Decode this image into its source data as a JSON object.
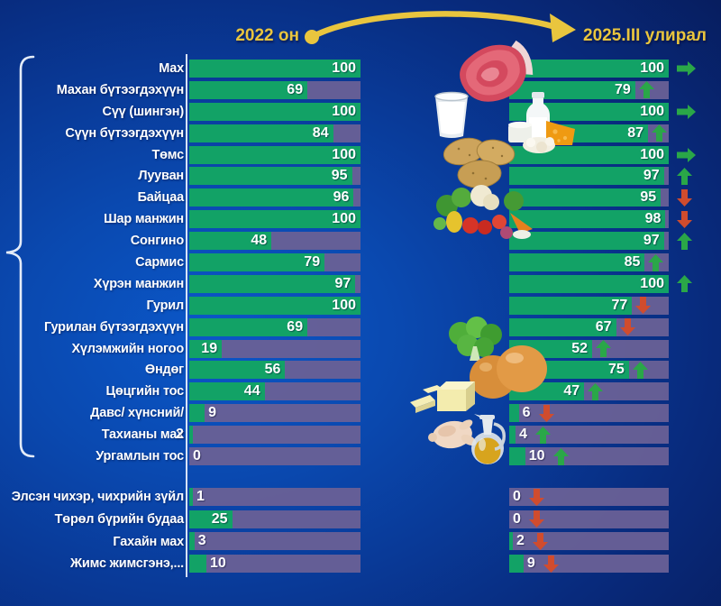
{
  "header": {
    "left_title": "2022 он",
    "right_title": "2025.III улирал"
  },
  "colors": {
    "bar_green": "#12a266",
    "track_purple": "#6a6096",
    "up_arrow_green": "#2aa748",
    "down_arrow_red": "#d04c2e",
    "right_arrow_green": "#2aa748",
    "header_gold": "#e9c53e",
    "background_blue": "#0a49b0",
    "value_text": "#ffffff"
  },
  "chart_data": {
    "type": "bar",
    "orientation": "horizontal",
    "xlim": [
      0,
      100
    ],
    "grid": false,
    "series": [
      "2022 он",
      "2025.III улирал"
    ],
    "legend_position": "top",
    "groups": [
      {
        "name": "main-food-group",
        "rows": [
          {
            "label": "Мах",
            "y2022": 100,
            "y2025": 100,
            "trend": "right"
          },
          {
            "label": "Махан бүтээгдэхүүн",
            "y2022": 69,
            "y2025": 79,
            "trend": "up"
          },
          {
            "label": "Сүү (шингэн)",
            "y2022": 100,
            "y2025": 100,
            "trend": "right"
          },
          {
            "label": "Сүүн бүтээгдэхүүн",
            "y2022": 84,
            "y2025": 87,
            "trend": "up"
          },
          {
            "label": "Төмс",
            "y2022": 100,
            "y2025": 100,
            "trend": "right"
          },
          {
            "label": "Лууван",
            "y2022": 95,
            "y2025": 97,
            "trend": "up"
          },
          {
            "label": "Байцаа",
            "y2022": 96,
            "y2025": 95,
            "trend": "down"
          },
          {
            "label": "Шар манжин",
            "y2022": 100,
            "y2025": 98,
            "trend": "down"
          },
          {
            "label": "Сонгино",
            "y2022": 48,
            "y2025": 97,
            "trend": "up"
          },
          {
            "label": "Сармис",
            "y2022": 79,
            "y2025": 85,
            "trend": "up"
          },
          {
            "label": "Хүрэн манжин",
            "y2022": 97,
            "y2025": 100,
            "trend": "up"
          },
          {
            "label": "Гурил",
            "y2022": 100,
            "y2025": 77,
            "trend": "down"
          },
          {
            "label": "Гурилан бүтээгдэхүүн",
            "y2022": 69,
            "y2025": 67,
            "trend": "down"
          },
          {
            "label": "Хүлэмжийн ногоо",
            "y2022": 19,
            "y2025": 52,
            "trend": "up"
          },
          {
            "label": "Өндөг",
            "y2022": 56,
            "y2025": 75,
            "trend": "up"
          },
          {
            "label": "Цөцгийн тос",
            "y2022": 44,
            "y2025": 47,
            "trend": "up"
          },
          {
            "label": "Давс/ хүнсний/",
            "y2022": 9,
            "y2025": 6,
            "trend": "down"
          },
          {
            "label": "Тахианы мах",
            "y2022": 2,
            "y2025": 4,
            "trend": "up",
            "value_overlaps_label": true
          },
          {
            "label": "Ургамлын тос",
            "y2022": 0,
            "y2025": 10,
            "trend": "up"
          }
        ]
      },
      {
        "name": "secondary-food-group",
        "rows": [
          {
            "label": "Элсэн чихэр, чихрийн зүйл",
            "y2022": 1,
            "y2025": 0,
            "trend": "down"
          },
          {
            "label": "Төрөл бүрийн будаа",
            "y2022": 25,
            "y2025": 0,
            "trend": "down"
          },
          {
            "label": "Гахайн мах",
            "y2022": 3,
            "y2025": 2,
            "trend": "down"
          },
          {
            "label": "Жимс жимсгэнэ,...",
            "y2022": 10,
            "y2025": 9,
            "trend": "down"
          }
        ]
      }
    ]
  },
  "food_icons": [
    "meat-icon",
    "milk-glass-icon",
    "dairy-products-icon",
    "potatoes-icon",
    "vegetables-icon",
    "leafy-greens-icon",
    "eggs-icon",
    "butter-icon",
    "chicken-icon",
    "cooking-oil-icon"
  ]
}
